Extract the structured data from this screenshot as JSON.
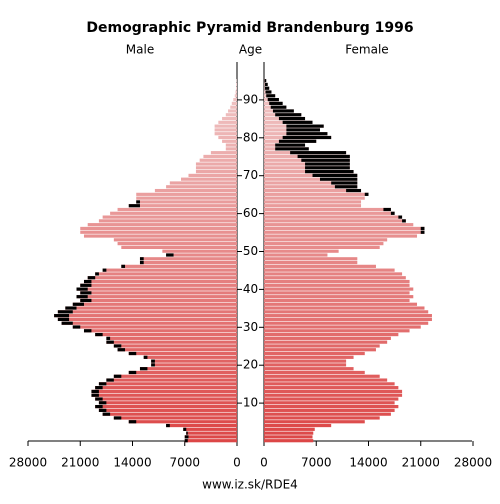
{
  "chart_data": {
    "type": "pyramid",
    "title": "Demographic Pyramid Brandenburg 1996",
    "y_label": "Age",
    "footer": "www.iz.sk/RDE4",
    "ages": [
      0,
      1,
      2,
      3,
      4,
      5,
      6,
      7,
      8,
      9,
      10,
      11,
      12,
      13,
      14,
      15,
      16,
      17,
      18,
      19,
      20,
      21,
      22,
      23,
      24,
      25,
      26,
      27,
      28,
      29,
      30,
      31,
      32,
      33,
      34,
      35,
      36,
      37,
      38,
      39,
      40,
      41,
      42,
      43,
      44,
      45,
      46,
      47,
      48,
      49,
      50,
      51,
      52,
      53,
      54,
      55,
      56,
      57,
      58,
      59,
      60,
      61,
      62,
      63,
      64,
      65,
      66,
      67,
      68,
      69,
      70,
      71,
      72,
      73,
      74,
      75,
      76,
      77,
      78,
      79,
      80,
      81,
      82,
      83,
      84,
      85,
      86,
      87,
      88,
      89,
      90,
      91,
      92,
      93,
      94,
      95
    ],
    "series": [
      {
        "name": "Male",
        "values": [
          7000,
          7000,
          6800,
          7200,
          9500,
          14500,
          16500,
          18000,
          18500,
          19000,
          18500,
          19000,
          19500,
          19500,
          19000,
          18500,
          17500,
          16500,
          14500,
          13000,
          11500,
          11500,
          12500,
          14500,
          16000,
          16500,
          17500,
          17500,
          19000,
          20500,
          22000,
          23500,
          24000,
          24500,
          24000,
          23000,
          22000,
          21000,
          21500,
          21000,
          21500,
          21000,
          20500,
          20000,
          19000,
          18000,
          15500,
          13000,
          13000,
          9500,
          10000,
          15500,
          16000,
          16500,
          20500,
          21000,
          21000,
          20000,
          18500,
          18000,
          17000,
          16000,
          14500,
          13500,
          13500,
          13500,
          11000,
          9500,
          9000,
          7500,
          6500,
          5500,
          5500,
          5500,
          5000,
          4500,
          3500,
          1500,
          1500,
          2000,
          2500,
          3000,
          3000,
          3000,
          2500,
          2000,
          1500,
          1200,
          900,
          700,
          500,
          300,
          200,
          100,
          100,
          50
        ]
      },
      {
        "name": "Female",
        "values": [
          6600,
          6500,
          6600,
          6800,
          9000,
          13500,
          15500,
          17000,
          17500,
          18000,
          17500,
          18000,
          18500,
          18500,
          18000,
          17500,
          16500,
          15500,
          13500,
          12000,
          11000,
          11000,
          12000,
          13500,
          15000,
          15500,
          16500,
          17000,
          18000,
          19500,
          21000,
          22000,
          22500,
          22500,
          22000,
          21500,
          20500,
          19500,
          20000,
          19500,
          20000,
          19500,
          19500,
          19000,
          18500,
          17500,
          15000,
          12500,
          12500,
          8500,
          10000,
          15500,
          16000,
          16500,
          20500,
          21500,
          21500,
          20000,
          19000,
          18500,
          17500,
          17000,
          13000,
          13000,
          13500,
          14000,
          13000,
          12500,
          12500,
          12500,
          12500,
          12000,
          11500,
          11500,
          11500,
          11500,
          11000,
          6000,
          5500,
          7000,
          9000,
          8500,
          7500,
          8000,
          6500,
          5500,
          5000,
          4000,
          3000,
          2500,
          2000,
          1500,
          1000,
          700,
          500,
          300
        ]
      }
    ],
    "gradient": [
      "#dc4646",
      "#f0c8c8"
    ],
    "excess_color": "#000000",
    "xlim": [
      0,
      28000
    ],
    "xticks": [
      0,
      7000,
      14000,
      21000,
      28000
    ],
    "ylim": [
      0,
      100
    ],
    "yticks": [
      10,
      20,
      30,
      40,
      50,
      60,
      70,
      80,
      90
    ]
  }
}
